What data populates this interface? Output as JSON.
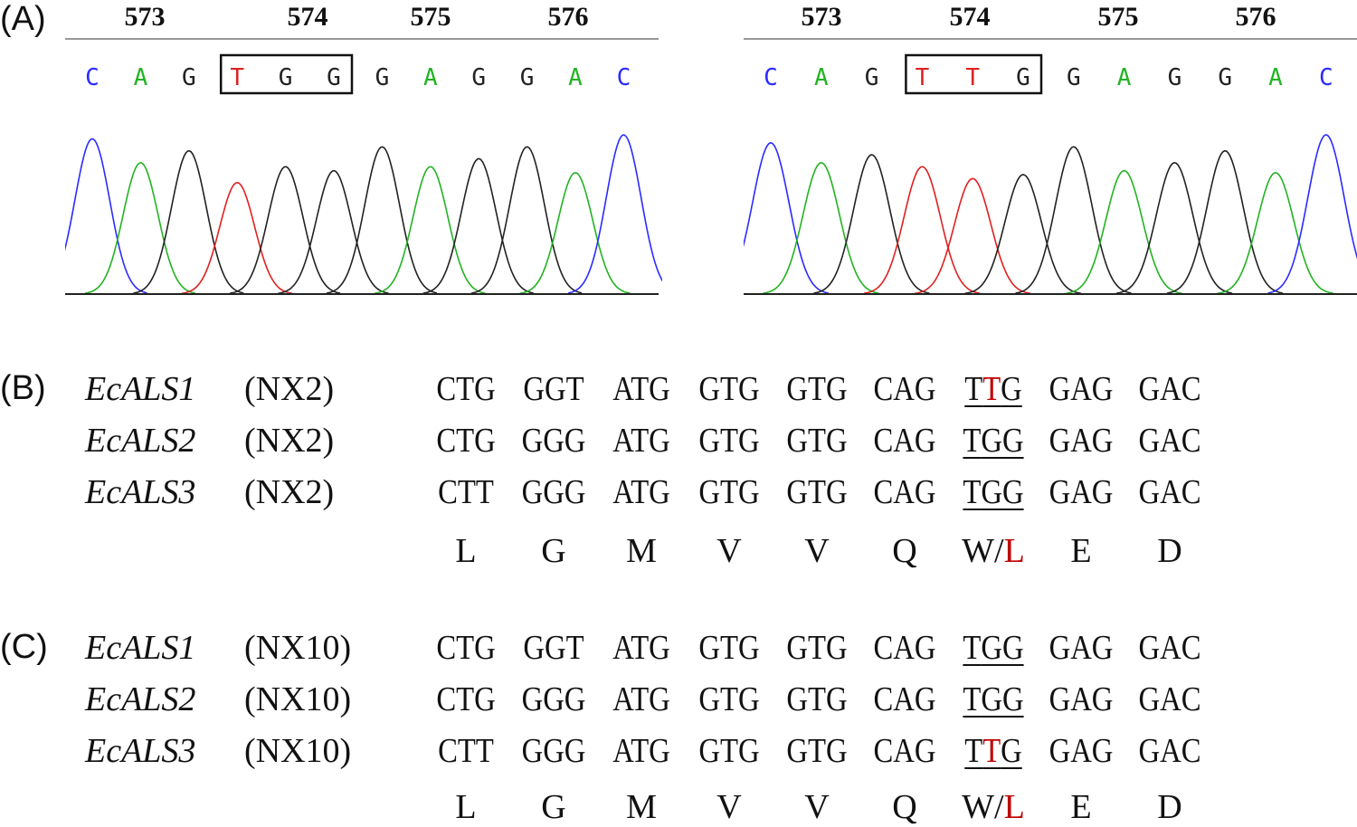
{
  "panels": {
    "a_label": "(A)",
    "b_label": "(B)",
    "c_label": "(C)"
  },
  "chromatograms": [
    {
      "positions": [
        "573",
        "574",
        "575",
        "576"
      ],
      "bases": [
        "C",
        "A",
        "G",
        "T",
        "G",
        "G",
        "G",
        "A",
        "G",
        "G",
        "A",
        "C"
      ],
      "boxed_bases": [
        3,
        5
      ],
      "red_bases": [
        3
      ],
      "peak_heights": [
        0.78,
        0.66,
        0.72,
        0.56,
        0.64,
        0.62,
        0.74,
        0.64,
        0.68,
        0.74,
        0.61,
        0.8
      ]
    },
    {
      "positions": [
        "573",
        "574",
        "575",
        "576"
      ],
      "bases": [
        "C",
        "A",
        "G",
        "T",
        "T",
        "G",
        "G",
        "A",
        "G",
        "G",
        "A",
        "C"
      ],
      "boxed_bases": [
        3,
        5
      ],
      "red_bases": [
        3,
        4
      ],
      "peak_heights": [
        0.76,
        0.66,
        0.7,
        0.64,
        0.58,
        0.6,
        0.74,
        0.62,
        0.66,
        0.72,
        0.61,
        0.8
      ]
    }
  ],
  "base_colors": {
    "A": "#22b322",
    "C": "#2b2bff",
    "G": "#222222",
    "T": "#e02020"
  },
  "section_b": {
    "rows": [
      {
        "gene": "EcALS1",
        "sample": "(NX2)",
        "codons": [
          "CTG",
          "GGT",
          "ATG",
          "GTG",
          "GTG",
          "CAG",
          "T",
          "T",
          "G",
          "GAG",
          "GAC"
        ],
        "mut_pos": 1
      },
      {
        "gene": "EcALS2",
        "sample": "(NX2)",
        "codons": [
          "CTG",
          "GGG",
          "ATG",
          "GTG",
          "GTG",
          "CAG",
          "T",
          "G",
          "G",
          "GAG",
          "GAC"
        ],
        "mut_pos": -1
      },
      {
        "gene": "EcALS3",
        "sample": "(NX2)",
        "codons": [
          "CTT",
          "GGG",
          "ATG",
          "GTG",
          "GTG",
          "CAG",
          "T",
          "G",
          "G",
          "GAG",
          "GAC"
        ],
        "mut_pos": -1
      }
    ],
    "amino_acids": [
      "L",
      "G",
      "M",
      "V",
      "V",
      "Q",
      "W/",
      "L",
      "E",
      "D"
    ]
  },
  "section_c": {
    "rows": [
      {
        "gene": "EcALS1",
        "sample": "(NX10)",
        "codons": [
          "CTG",
          "GGT",
          "ATG",
          "GTG",
          "GTG",
          "CAG",
          "T",
          "G",
          "G",
          "GAG",
          "GAC"
        ],
        "mut_pos": -1
      },
      {
        "gene": "EcALS2",
        "sample": "(NX10)",
        "codons": [
          "CTG",
          "GGG",
          "ATG",
          "GTG",
          "GTG",
          "CAG",
          "T",
          "G",
          "G",
          "GAG",
          "GAC"
        ],
        "mut_pos": -1
      },
      {
        "gene": "EcALS3",
        "sample": "(NX10)",
        "codons": [
          "CTT",
          "GGG",
          "ATG",
          "GTG",
          "GTG",
          "CAG",
          "T",
          "T",
          "G",
          "GAG",
          "GAC"
        ],
        "mut_pos": 1
      }
    ],
    "amino_acids": [
      "L",
      "G",
      "M",
      "V",
      "V",
      "Q",
      "W/",
      "L",
      "E",
      "D"
    ]
  }
}
